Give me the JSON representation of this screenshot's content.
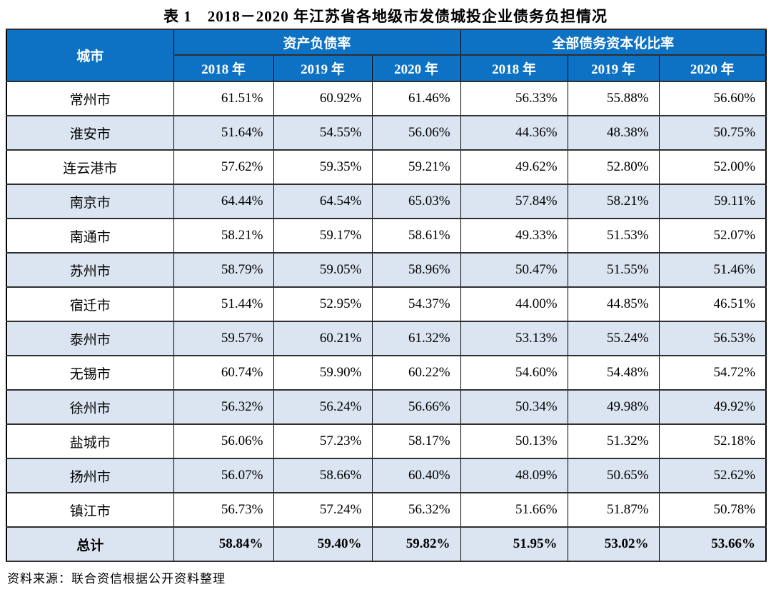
{
  "title": "表 1　2018－2020 年江苏省各地级市发债城投企业债务负担情况",
  "source": "资料来源：联合资信根据公开资料整理",
  "colors": {
    "header_bg": "#0d72c4",
    "header_text": "#ffffff",
    "stripe_bg": "#dbe5f1",
    "border": "#000000"
  },
  "table": {
    "city_header": "城市",
    "group_headers": [
      "资产负债率",
      "全部债务资本化比率"
    ],
    "year_headers": [
      "2018 年",
      "2019 年",
      "2020 年",
      "2018 年",
      "2019 年",
      "2020 年"
    ],
    "rows": [
      {
        "city": "常州市",
        "values": [
          "61.51%",
          "60.92%",
          "61.46%",
          "56.33%",
          "55.88%",
          "56.60%"
        ],
        "is_total": false
      },
      {
        "city": "淮安市",
        "values": [
          "51.64%",
          "54.55%",
          "56.06%",
          "44.36%",
          "48.38%",
          "50.75%"
        ],
        "is_total": false
      },
      {
        "city": "连云港市",
        "values": [
          "57.62%",
          "59.35%",
          "59.21%",
          "49.62%",
          "52.80%",
          "52.00%"
        ],
        "is_total": false
      },
      {
        "city": "南京市",
        "values": [
          "64.44%",
          "64.54%",
          "65.03%",
          "57.84%",
          "58.21%",
          "59.11%"
        ],
        "is_total": false
      },
      {
        "city": "南通市",
        "values": [
          "58.21%",
          "59.17%",
          "58.61%",
          "49.33%",
          "51.53%",
          "52.07%"
        ],
        "is_total": false
      },
      {
        "city": "苏州市",
        "values": [
          "58.79%",
          "59.05%",
          "58.96%",
          "50.47%",
          "51.55%",
          "51.46%"
        ],
        "is_total": false
      },
      {
        "city": "宿迁市",
        "values": [
          "51.44%",
          "52.95%",
          "54.37%",
          "44.00%",
          "44.85%",
          "46.51%"
        ],
        "is_total": false
      },
      {
        "city": "泰州市",
        "values": [
          "59.57%",
          "60.21%",
          "61.32%",
          "53.13%",
          "55.24%",
          "56.53%"
        ],
        "is_total": false
      },
      {
        "city": "无锡市",
        "values": [
          "60.74%",
          "59.90%",
          "60.22%",
          "54.60%",
          "54.48%",
          "54.72%"
        ],
        "is_total": false
      },
      {
        "city": "徐州市",
        "values": [
          "56.32%",
          "56.24%",
          "56.66%",
          "50.34%",
          "49.98%",
          "49.92%"
        ],
        "is_total": false
      },
      {
        "city": "盐城市",
        "values": [
          "56.06%",
          "57.23%",
          "58.17%",
          "50.13%",
          "51.32%",
          "52.18%"
        ],
        "is_total": false
      },
      {
        "city": "扬州市",
        "values": [
          "56.07%",
          "58.66%",
          "60.40%",
          "48.09%",
          "50.65%",
          "52.62%"
        ],
        "is_total": false
      },
      {
        "city": "镇江市",
        "values": [
          "56.73%",
          "57.24%",
          "56.32%",
          "51.66%",
          "51.87%",
          "50.78%"
        ],
        "is_total": false
      },
      {
        "city": "总计",
        "values": [
          "58.84%",
          "59.40%",
          "59.82%",
          "51.95%",
          "53.02%",
          "53.66%"
        ],
        "is_total": true
      }
    ]
  }
}
